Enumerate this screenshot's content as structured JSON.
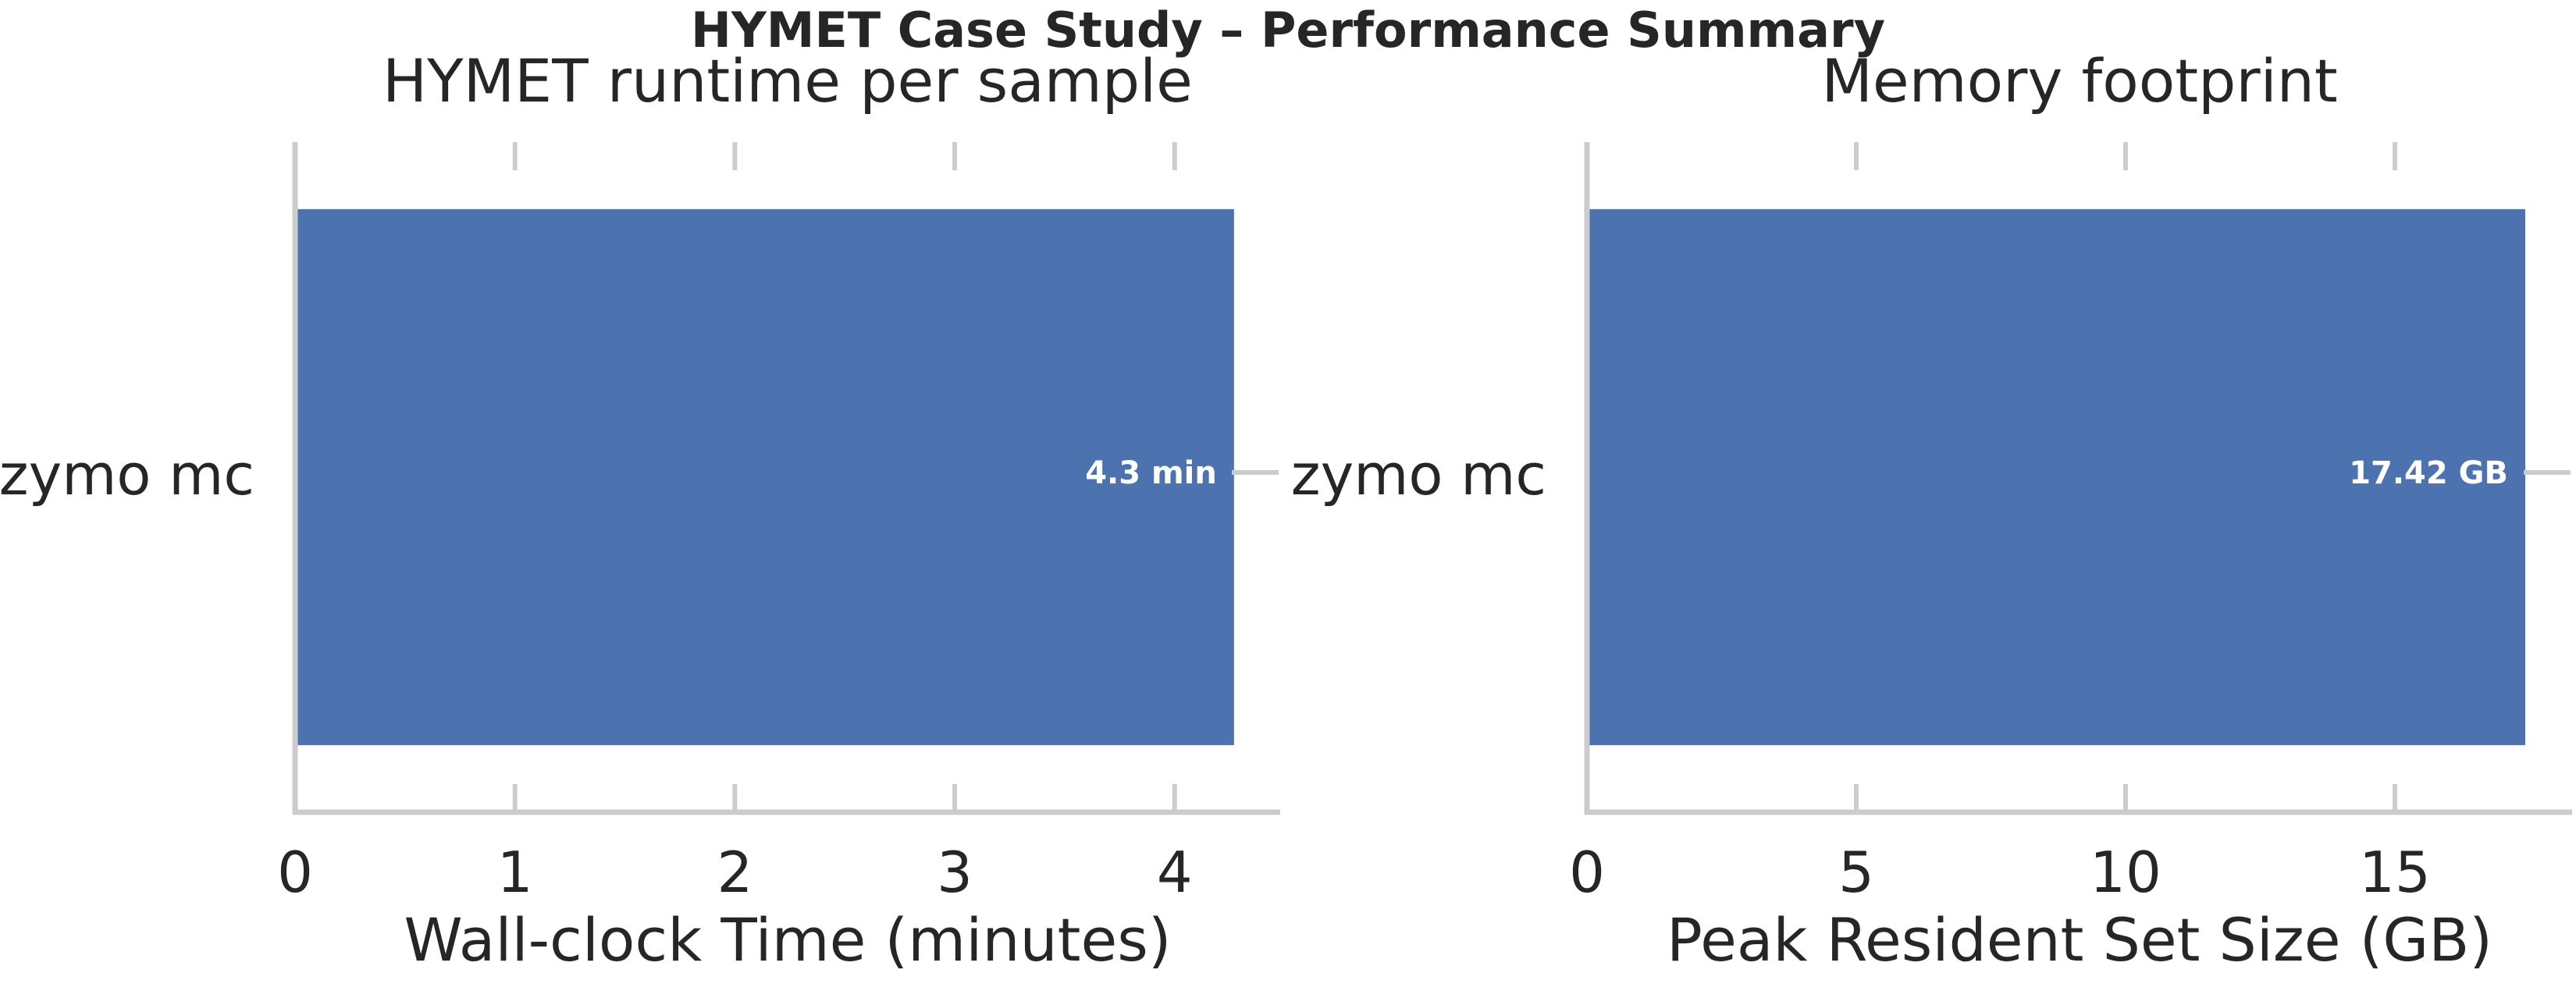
{
  "figure": {
    "suptitle": "HYMET Case Study – Performance Summary"
  },
  "colors": {
    "bar": "#4C72B0",
    "spine": "#cccccc",
    "tick": "#cccccc",
    "text": "#262626",
    "data_label": "#ffffff"
  },
  "chart_data": [
    {
      "type": "bar",
      "orientation": "horizontal",
      "title": "HYMET runtime per sample",
      "xlabel": "Wall-clock Time (minutes)",
      "ylabel": "",
      "categories": [
        "zymo mc"
      ],
      "values": [
        4.27
      ],
      "value_labels": [
        "4.3 min"
      ],
      "xlim": [
        0,
        4.48
      ],
      "xticks": [
        0,
        1,
        2,
        3,
        4
      ],
      "xtick_labels": [
        "0",
        "1",
        "2",
        "3",
        "4"
      ],
      "grid": false
    },
    {
      "type": "bar",
      "orientation": "horizontal",
      "title": "Memory footprint",
      "xlabel": "Peak Resident Set Size (GB)",
      "ylabel": "",
      "categories": [
        "zymo mc"
      ],
      "values": [
        17.42
      ],
      "value_labels": [
        "17.42 GB"
      ],
      "xlim": [
        0,
        18.29
      ],
      "xticks": [
        0,
        5,
        10,
        15
      ],
      "xtick_labels": [
        "0",
        "5",
        "10",
        "15"
      ],
      "grid": false
    }
  ]
}
